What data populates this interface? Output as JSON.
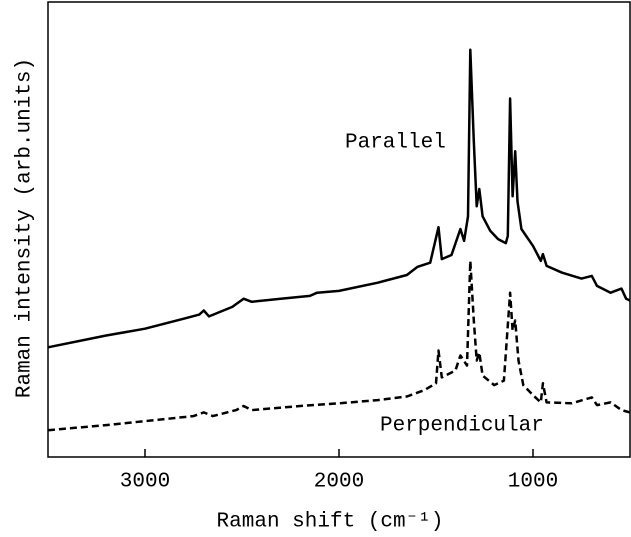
{
  "chart_data": {
    "type": "line",
    "x_label": "Raman shift (cm⁻¹)",
    "y_label": "Raman intensity (arb.units)",
    "xlim": [
      3500,
      500
    ],
    "ylim": [
      0,
      100
    ],
    "xticks": [
      3000,
      2000,
      1000
    ],
    "series": [
      {
        "name": "Parallel",
        "color": "#000000",
        "style": "solid",
        "x": [
          3500,
          3200,
          3000,
          2800,
          2720,
          2697,
          2670,
          2550,
          2492,
          2450,
          2300,
          2150,
          2113,
          2000,
          1800,
          1650,
          1595,
          1530,
          1487,
          1470,
          1420,
          1374,
          1355,
          1335,
          1323,
          1305,
          1290,
          1277,
          1260,
          1220,
          1180,
          1140,
          1130,
          1118,
          1105,
          1092,
          1080,
          1060,
          1000,
          960,
          949,
          930,
          850,
          750,
          697,
          670,
          600,
          544,
          520,
          500
        ],
        "values": [
          24.1,
          26.7,
          28.2,
          30.4,
          31.3,
          32.2,
          30.9,
          33.0,
          34.8,
          34.1,
          34.8,
          35.4,
          36.1,
          36.5,
          38.3,
          40.0,
          41.8,
          42.7,
          50.5,
          43.5,
          44.4,
          50.1,
          47.5,
          52.9,
          89.5,
          69.4,
          55.1,
          58.9,
          52.9,
          49.7,
          47.9,
          47.0,
          48.6,
          78.8,
          57.3,
          67.2,
          56.2,
          50.1,
          46.4,
          43.1,
          44.6,
          42.0,
          40.5,
          39.2,
          39.8,
          37.6,
          36.1,
          37.0,
          34.8,
          34.4
        ]
      },
      {
        "name": "Perpendicular",
        "color": "#000000",
        "style": "dashed",
        "x": [
          3500,
          3200,
          3000,
          2750,
          2697,
          2650,
          2530,
          2492,
          2450,
          2200,
          2000,
          1800,
          1650,
          1560,
          1500,
          1487,
          1470,
          1400,
          1374,
          1340,
          1323,
          1305,
          1290,
          1277,
          1260,
          1200,
          1150,
          1118,
          1105,
          1092,
          1075,
          1050,
          1000,
          960,
          949,
          930,
          800,
          697,
          670,
          600,
          544,
          500
        ],
        "values": [
          5.9,
          7.0,
          7.9,
          9.0,
          9.8,
          9.0,
          10.3,
          11.2,
          10.3,
          11.2,
          11.8,
          12.5,
          13.3,
          14.7,
          16.2,
          23.4,
          17.5,
          19.0,
          22.3,
          20.1,
          43.1,
          30.0,
          21.2,
          23.0,
          17.9,
          15.8,
          16.8,
          36.1,
          27.8,
          30.0,
          21.2,
          15.8,
          13.6,
          12.0,
          16.2,
          12.0,
          11.8,
          13.1,
          11.4,
          12.0,
          10.3,
          9.8
        ]
      }
    ]
  }
}
